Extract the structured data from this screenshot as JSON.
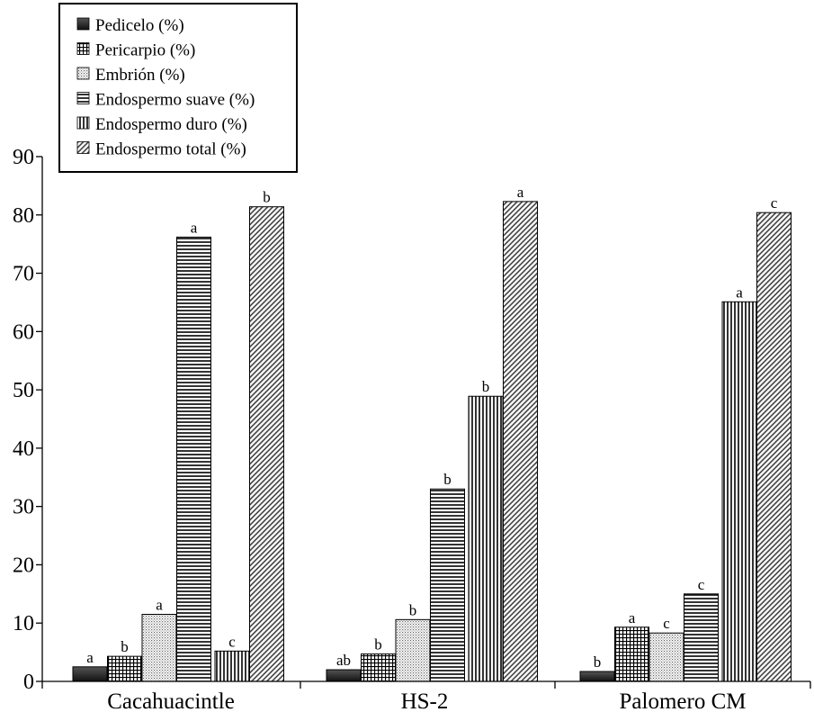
{
  "chart_data": {
    "type": "bar",
    "title": "",
    "xlabel": "",
    "ylabel": "",
    "ylim": [
      0,
      90
    ],
    "y_ticks": [
      0,
      10,
      20,
      30,
      40,
      50,
      60,
      70,
      80,
      90
    ],
    "categories": [
      "Cacahuacintle",
      "HS-2",
      "Palomero CM"
    ],
    "legend_position": "top-left",
    "series": [
      {
        "name": "Pedicelo (%)",
        "pattern": "solid-dark",
        "values": [
          2.5,
          2.0,
          1.7
        ],
        "labels": [
          "a",
          "ab",
          "b"
        ]
      },
      {
        "name": "Pericarpio (%)",
        "pattern": "grid",
        "values": [
          4.3,
          4.7,
          9.3
        ],
        "labels": [
          "b",
          "b",
          "a"
        ]
      },
      {
        "name": "Embrión (%)",
        "pattern": "dots",
        "values": [
          11.5,
          10.6,
          8.3
        ],
        "labels": [
          "a",
          "b",
          "c"
        ]
      },
      {
        "name": "Endospermo suave (%)",
        "pattern": "horizontal-lines",
        "values": [
          76.2,
          33.0,
          15.0
        ],
        "labels": [
          "a",
          "b",
          "c"
        ]
      },
      {
        "name": "Endospermo duro (%)",
        "pattern": "vertical-lines",
        "values": [
          5.2,
          48.9,
          65.1
        ],
        "labels": [
          "c",
          "b",
          "a"
        ]
      },
      {
        "name": "Endospermo total (%)",
        "pattern": "diagonal-lines",
        "values": [
          81.4,
          82.3,
          80.4
        ],
        "labels": [
          "b",
          "a",
          "c"
        ]
      }
    ]
  }
}
